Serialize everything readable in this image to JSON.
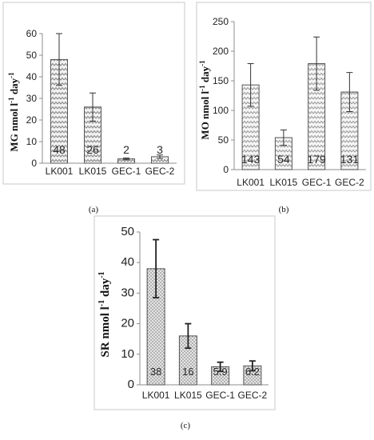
{
  "colors": {
    "bar_pattern": "#8a8a8a",
    "axis": "#8c8c8c",
    "frame": "#c8c8c8"
  },
  "chart_data": [
    {
      "panel": "a",
      "caption": "(a)",
      "type": "bar",
      "categories": [
        "LK001",
        "LK015",
        "GEC-1",
        "GEC-2"
      ],
      "values": [
        48,
        26,
        2,
        3
      ],
      "data_labels": [
        "48",
        "26",
        "2",
        "3"
      ],
      "error": [
        12,
        6.5,
        0.4,
        0.8
      ],
      "ylabel_main": "MG nmol l",
      "ylabel_sup1": "-1",
      "ylabel_mid": " day",
      "ylabel_sup2": "-1",
      "ylim": [
        0,
        60
      ],
      "yticks": [
        0,
        10,
        20,
        30,
        40,
        50,
        60
      ],
      "pattern": "zigzag",
      "grid": false
    },
    {
      "panel": "b",
      "caption": "(b)",
      "type": "bar",
      "categories": [
        "LK001",
        "LK015",
        "GEC-1",
        "GEC-2"
      ],
      "values": [
        143,
        54,
        179,
        131
      ],
      "data_labels": [
        "143",
        "54",
        "179",
        "131"
      ],
      "error": [
        36,
        13,
        45,
        33
      ],
      "ylabel_main": "MO nmol l",
      "ylabel_sup1": "-1",
      "ylabel_mid": " day",
      "ylabel_sup2": "-1",
      "ylim": [
        0,
        250
      ],
      "yticks": [
        0,
        50,
        100,
        150,
        200,
        250
      ],
      "pattern": "zigzag-light",
      "grid": false
    },
    {
      "panel": "c",
      "caption": "(c)",
      "type": "bar",
      "categories": [
        "LK001",
        "LK015",
        "GEC-1",
        "GEC-2"
      ],
      "values": [
        38,
        16,
        5.9,
        6.2
      ],
      "data_labels": [
        "38",
        "16",
        "5.9",
        "6.2"
      ],
      "error": [
        9.5,
        4,
        1.5,
        1.6
      ],
      "ylabel_main": "SR nmol l",
      "ylabel_sup1": "-1",
      "ylabel_mid": " day",
      "ylabel_sup2": "-1",
      "ylim": [
        0,
        50
      ],
      "yticks": [
        0,
        10,
        20,
        30,
        40,
        50
      ],
      "pattern": "dots",
      "grid": false
    }
  ]
}
